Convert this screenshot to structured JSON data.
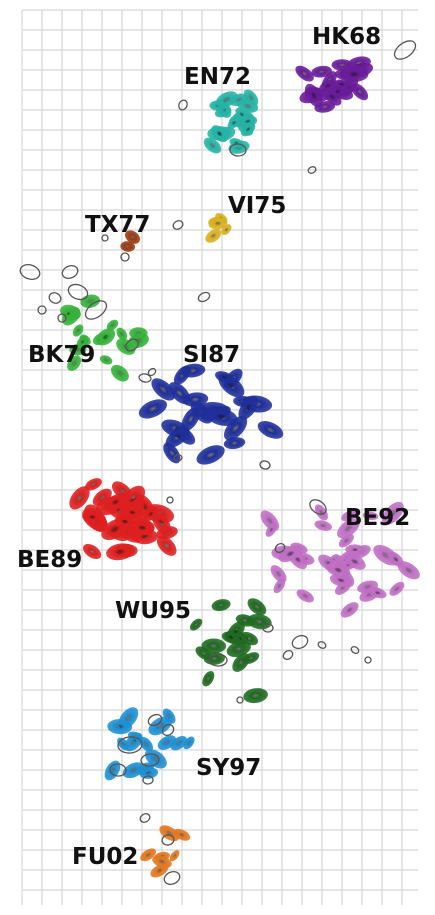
{
  "labels": {
    "hk68": "HK68",
    "en72": "EN72",
    "vi75": "VI75",
    "tx77": "TX77",
    "bk79": "BK79",
    "si87": "SI87",
    "be92": "BE92",
    "be89": "BE89",
    "wu95": "WU95",
    "sy97": "SY97",
    "fu02": "FU02"
  },
  "colors": {
    "HK68": "#6a1b9a",
    "EN72": "#26b3a6",
    "VI75": "#d8b020",
    "TX77": "#9a3a12",
    "BK79": "#35b23a",
    "SI87": "#1f2f9a",
    "BE89": "#dd1f1f",
    "BE92": "#c06fc4",
    "WU95": "#1f6a20",
    "SY97": "#1e8fd2",
    "FU02": "#e07820",
    "outline": "#555555",
    "grid": "#d6d6d6"
  }
}
